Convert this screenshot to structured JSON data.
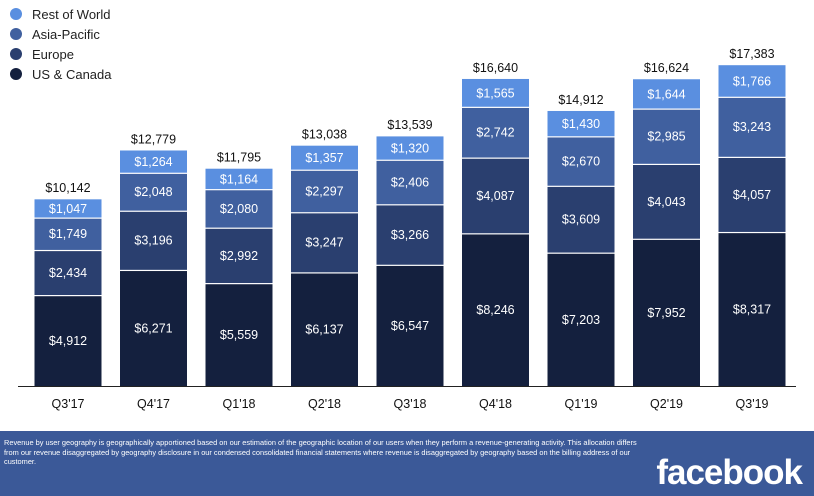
{
  "colors": {
    "rest_of_world": "#5a8fe0",
    "asia_pacific": "#40609f",
    "europe": "#2a3f6f",
    "us_canada": "#14203e",
    "footer": "#3b5998"
  },
  "legend": [
    {
      "name": "Rest of World",
      "color": "#5a8fe0"
    },
    {
      "name": "Asia-Pacific",
      "color": "#40609f"
    },
    {
      "name": "Europe",
      "color": "#2a3f6f"
    },
    {
      "name": "US & Canada",
      "color": "#14203e"
    }
  ],
  "chart_data": {
    "type": "bar",
    "stacked": true,
    "title": "",
    "xlabel": "",
    "ylabel": "",
    "ylim": [
      0,
      17383
    ],
    "grid": false,
    "legend_position": "top-left",
    "categories": [
      "Q3'17",
      "Q4'17",
      "Q1'18",
      "Q2'18",
      "Q3'18",
      "Q4'18",
      "Q1'19",
      "Q2'19",
      "Q3'19"
    ],
    "totals": [
      "$10,142",
      "$12,779",
      "$11,795",
      "$13,038",
      "$13,539",
      "$16,640",
      "$14,912",
      "$16,624",
      "$17,383"
    ],
    "total_values": [
      10142,
      12779,
      11795,
      13038,
      13539,
      16640,
      14912,
      16624,
      17383
    ],
    "series": [
      {
        "name": "US & Canada",
        "values": [
          4912,
          6271,
          5559,
          6137,
          6547,
          8246,
          7203,
          7952,
          8317
        ],
        "labels": [
          "$4,912",
          "$6,271",
          "$5,559",
          "$6,137",
          "$6,547",
          "$8,246",
          "$7,203",
          "$7,952",
          "$8,317"
        ]
      },
      {
        "name": "Europe",
        "values": [
          2434,
          3196,
          2992,
          3247,
          3266,
          4087,
          3609,
          4043,
          4057
        ],
        "labels": [
          "$2,434",
          "$3,196",
          "$2,992",
          "$3,247",
          "$3,266",
          "$4,087",
          "$3,609",
          "$4,043",
          "$4,057"
        ]
      },
      {
        "name": "Asia-Pacific",
        "values": [
          1749,
          2048,
          2080,
          2297,
          2406,
          2742,
          2670,
          2985,
          3243
        ],
        "labels": [
          "$1,749",
          "$2,048",
          "$2,080",
          "$2,297",
          "$2,406",
          "$2,742",
          "$2,670",
          "$2,985",
          "$3,243"
        ]
      },
      {
        "name": "Rest of World",
        "values": [
          1047,
          1264,
          1164,
          1357,
          1320,
          1565,
          1430,
          1644,
          1766
        ],
        "labels": [
          "$1,047",
          "$1,264",
          "$1,164",
          "$1,357",
          "$1,320",
          "$1,565",
          "$1,430",
          "$1,644",
          "$1,766"
        ]
      }
    ]
  },
  "footer": {
    "note": "Revenue by user geography is geographically apportioned based on our estimation of the geographic location of our users when they perform a revenue-generating activity. This allocation differs from our revenue disaggregated by geography disclosure in our condensed consolidated financial statements where revenue is disaggregated by geography based on the billing address of our customer.",
    "logo_text": "facebook"
  }
}
